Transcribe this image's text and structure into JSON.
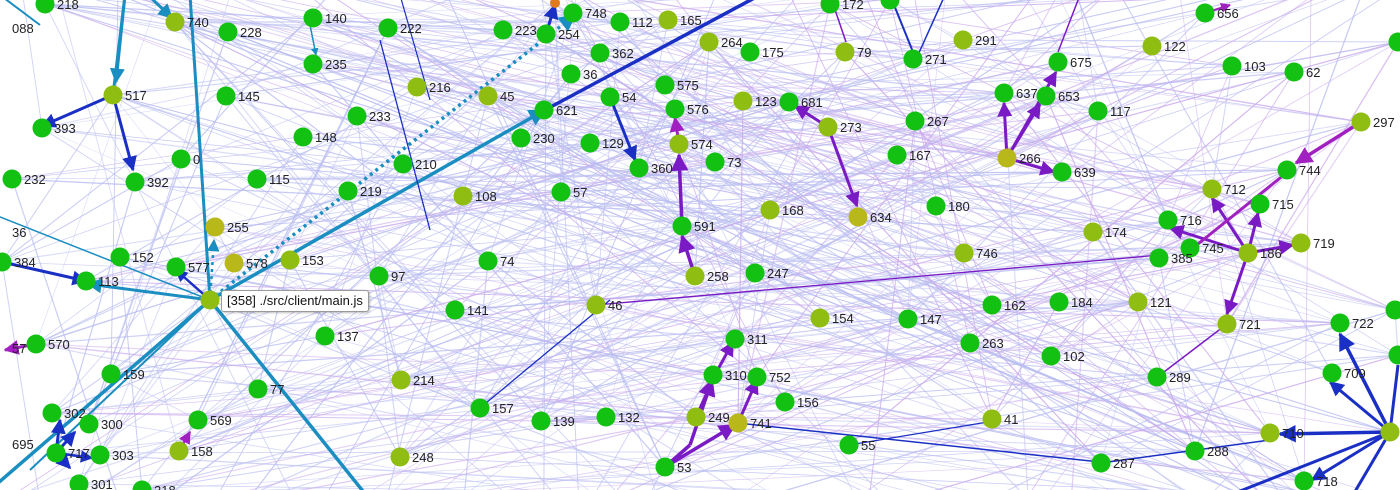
{
  "tooltip": {
    "text": "[358] ./src/client/main.js"
  },
  "colors": {
    "node_green": "#12c112",
    "node_olive": "#8fbd12",
    "node_yellow": "#b8b81a",
    "edge_faint": "#b9bdf0",
    "edge_blue": "#1a2fc4",
    "edge_teal": "#1a8ec0",
    "edge_purple": "#7a1ac4",
    "edge_magenta": "#a020c0"
  },
  "nodes": [
    {
      "id": "218"
    },
    {
      "id": "088"
    },
    {
      "id": "740"
    },
    {
      "id": "228"
    },
    {
      "id": "140"
    },
    {
      "id": "222"
    },
    {
      "id": "223"
    },
    {
      "id": "748"
    },
    {
      "id": "254"
    },
    {
      "id": "112"
    },
    {
      "id": "165"
    },
    {
      "id": "264"
    },
    {
      "id": "175"
    },
    {
      "id": "172"
    },
    {
      "id": "360"
    },
    {
      "id": "79"
    },
    {
      "id": "291"
    },
    {
      "id": "122"
    },
    {
      "id": "656"
    },
    {
      "id": "235"
    },
    {
      "id": "362"
    },
    {
      "id": "271"
    },
    {
      "id": "675"
    },
    {
      "id": "103"
    },
    {
      "id": "62"
    },
    {
      "id": "517"
    },
    {
      "id": "145"
    },
    {
      "id": "216"
    },
    {
      "id": "45"
    },
    {
      "id": "36"
    },
    {
      "id": "54"
    },
    {
      "id": "575"
    },
    {
      "id": "123"
    },
    {
      "id": "681"
    },
    {
      "id": "637"
    },
    {
      "id": "653"
    },
    {
      "id": "393"
    },
    {
      "id": "233"
    },
    {
      "id": "621"
    },
    {
      "id": "576"
    },
    {
      "id": "117"
    },
    {
      "id": "273"
    },
    {
      "id": "267"
    },
    {
      "id": "297"
    },
    {
      "id": "148"
    },
    {
      "id": "230"
    },
    {
      "id": "129"
    },
    {
      "id": "574"
    },
    {
      "id": "0"
    },
    {
      "id": "210"
    },
    {
      "id": "360"
    },
    {
      "id": "73"
    },
    {
      "id": "167"
    },
    {
      "id": "266"
    },
    {
      "id": "639"
    },
    {
      "id": "744"
    },
    {
      "id": "232"
    },
    {
      "id": "392"
    },
    {
      "id": "115"
    },
    {
      "id": "219"
    },
    {
      "id": "108"
    },
    {
      "id": "57"
    },
    {
      "id": "712"
    },
    {
      "id": "715"
    },
    {
      "id": "168"
    },
    {
      "id": "634"
    },
    {
      "id": "180"
    },
    {
      "id": "255"
    },
    {
      "id": "591"
    },
    {
      "id": "716"
    },
    {
      "id": "174"
    },
    {
      "id": "745"
    },
    {
      "id": "719"
    },
    {
      "id": "36"
    },
    {
      "id": "152"
    },
    {
      "id": "577"
    },
    {
      "id": "578"
    },
    {
      "id": "153"
    },
    {
      "id": "186"
    },
    {
      "id": "384"
    },
    {
      "id": "113"
    },
    {
      "id": "74"
    },
    {
      "id": "97"
    },
    {
      "id": "247"
    },
    {
      "id": "258"
    },
    {
      "id": "746"
    },
    {
      "id": "385"
    },
    {
      "id": "46"
    },
    {
      "id": "162"
    },
    {
      "id": "184"
    },
    {
      "id": "121"
    },
    {
      "id": "141"
    },
    {
      "id": "154"
    },
    {
      "id": "147"
    },
    {
      "id": "722"
    },
    {
      "id": "721"
    },
    {
      "id": "137"
    },
    {
      "id": "570"
    },
    {
      "id": "57"
    },
    {
      "id": "263"
    },
    {
      "id": "102"
    },
    {
      "id": "311"
    },
    {
      "id": "159"
    },
    {
      "id": "310"
    },
    {
      "id": "752"
    },
    {
      "id": "214"
    },
    {
      "id": "77"
    },
    {
      "id": "289"
    },
    {
      "id": "709"
    },
    {
      "id": "156"
    },
    {
      "id": "157"
    },
    {
      "id": "139"
    },
    {
      "id": "132"
    },
    {
      "id": "249"
    },
    {
      "id": "741"
    },
    {
      "id": "302"
    },
    {
      "id": "569"
    },
    {
      "id": "300"
    },
    {
      "id": "41"
    },
    {
      "id": "695"
    },
    {
      "id": "717"
    },
    {
      "id": "303"
    },
    {
      "id": "158"
    },
    {
      "id": "248"
    },
    {
      "id": "55"
    },
    {
      "id": "288"
    },
    {
      "id": "710"
    },
    {
      "id": "53"
    },
    {
      "id": "287"
    },
    {
      "id": "301"
    },
    {
      "id": "318"
    },
    {
      "id": "718"
    },
    {
      "id": "358"
    },
    {
      "id": "hub-right"
    },
    {
      "id": "top-orange"
    },
    {
      "id": "far-right-1"
    },
    {
      "id": "far-right-2"
    },
    {
      "id": "top-right-e"
    }
  ]
}
